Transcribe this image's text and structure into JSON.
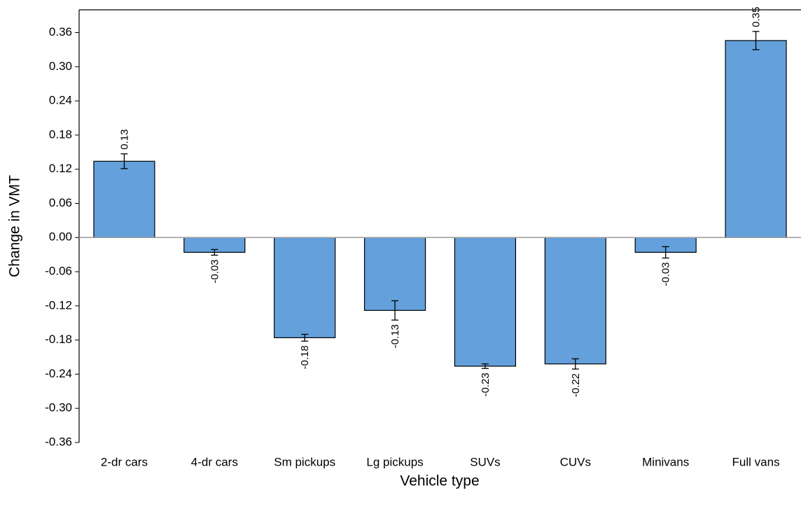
{
  "chart_data": {
    "type": "bar",
    "x_label": "Vehicle type",
    "y_label": "Change in VMT",
    "categories": [
      "2-dr cars",
      "4-dr cars",
      "Sm pickups",
      "Lg pickups",
      "SUVs",
      "CUVs",
      "Minivans",
      "Full vans"
    ],
    "values": [
      0.134,
      -0.026,
      -0.176,
      -0.128,
      -0.226,
      -0.222,
      -0.026,
      0.346
    ],
    "value_labels": [
      "0.13",
      "-0.03",
      "-0.18",
      "-0.13",
      "-0.23",
      "-0.22",
      "-0.03",
      "0.35"
    ],
    "errors": [
      0.013,
      0.005,
      0.006,
      0.017,
      0.004,
      0.009,
      0.01,
      0.016
    ],
    "color": "#63a0dc",
    "ylim": [
      -0.36,
      0.4
    ],
    "yticks": [
      {
        "value": -0.36,
        "label": "-0.36"
      },
      {
        "value": -0.3,
        "label": "-0.30"
      },
      -0.24,
      -0.18,
      -0.12,
      -0.06,
      {
        "value": 0,
        "label": "0.00"
      },
      0.06,
      0.12,
      0.18,
      0.24,
      {
        "value": 0.3,
        "label": "0.30"
      },
      0.36
    ]
  }
}
